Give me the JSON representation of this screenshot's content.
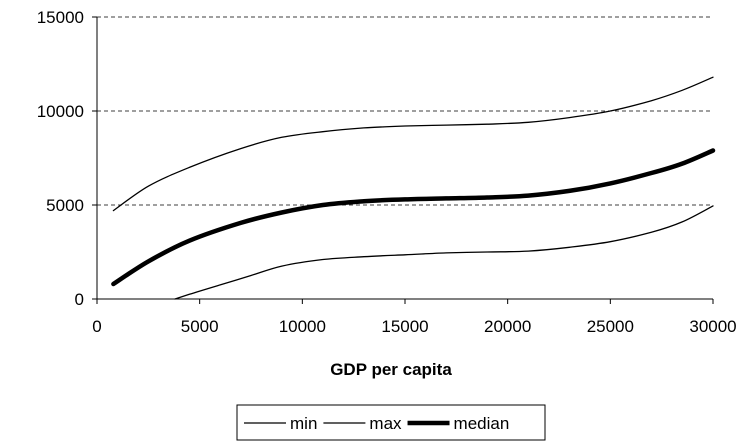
{
  "chart_data": {
    "type": "line",
    "title": "",
    "xlabel": "GDP per capita",
    "ylabel": "",
    "xlim": [
      0,
      30000
    ],
    "ylim": [
      0,
      15000
    ],
    "x_ticks": [
      0,
      5000,
      10000,
      15000,
      20000,
      25000,
      30000
    ],
    "y_ticks": [
      0,
      5000,
      10000,
      15000
    ],
    "grid": "horizontal dashed",
    "legend_position": "bottom",
    "series": [
      {
        "name": "min",
        "color": "#000000",
        "weight": "thin",
        "points": [
          [
            3800,
            0
          ],
          [
            4500,
            250
          ],
          [
            6000,
            750
          ],
          [
            7500,
            1250
          ],
          [
            9000,
            1750
          ],
          [
            11000,
            2100
          ],
          [
            13000,
            2250
          ],
          [
            15000,
            2350
          ],
          [
            17000,
            2450
          ],
          [
            19000,
            2500
          ],
          [
            21000,
            2550
          ],
          [
            23000,
            2750
          ],
          [
            25000,
            3050
          ],
          [
            27000,
            3550
          ],
          [
            28500,
            4100
          ],
          [
            30000,
            4950
          ]
        ]
      },
      {
        "name": "max",
        "color": "#000000",
        "weight": "thin",
        "points": [
          [
            800,
            4700
          ],
          [
            2500,
            6000
          ],
          [
            4500,
            7000
          ],
          [
            7000,
            8000
          ],
          [
            9000,
            8600
          ],
          [
            11000,
            8900
          ],
          [
            13000,
            9100
          ],
          [
            15000,
            9200
          ],
          [
            17000,
            9250
          ],
          [
            19000,
            9300
          ],
          [
            21000,
            9400
          ],
          [
            23000,
            9650
          ],
          [
            25000,
            10000
          ],
          [
            27000,
            10550
          ],
          [
            28500,
            11100
          ],
          [
            30000,
            11800
          ]
        ]
      },
      {
        "name": "median",
        "color": "#000000",
        "weight": "thick",
        "points": [
          [
            800,
            800
          ],
          [
            2500,
            2000
          ],
          [
            4500,
            3100
          ],
          [
            7000,
            4050
          ],
          [
            9000,
            4600
          ],
          [
            11000,
            5000
          ],
          [
            13000,
            5200
          ],
          [
            15000,
            5300
          ],
          [
            17000,
            5350
          ],
          [
            19000,
            5400
          ],
          [
            21000,
            5500
          ],
          [
            23000,
            5750
          ],
          [
            25000,
            6150
          ],
          [
            27000,
            6700
          ],
          [
            28500,
            7200
          ],
          [
            30000,
            7900
          ]
        ]
      }
    ]
  }
}
